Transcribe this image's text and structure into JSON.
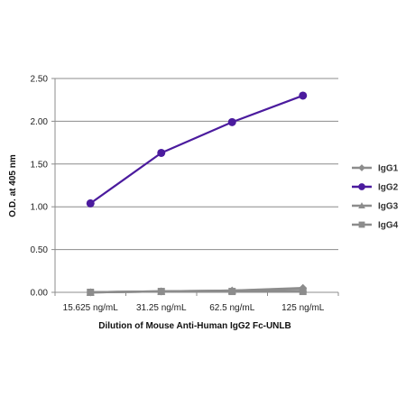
{
  "chart_data": {
    "type": "line",
    "title": "",
    "xlabel": "Dilution of Mouse Anti-Human IgG2 Fc-UNLB",
    "ylabel": "O.D. at 405 nm",
    "categories": [
      "15.625 ng/mL",
      "31.25 ng/mL",
      "62.5 ng/mL",
      "125 ng/mL"
    ],
    "ylim": [
      0,
      2.5
    ],
    "yticks": [
      "0.00",
      "0.50",
      "1.00",
      "1.50",
      "2.00",
      "2.50"
    ],
    "grid": true,
    "legend_position": "right",
    "series": [
      {
        "name": "IgG1",
        "values": [
          0.0,
          0.01,
          0.02,
          0.05
        ],
        "color": "#8c8c8c",
        "marker": "diamond"
      },
      {
        "name": "IgG2",
        "values": [
          1.04,
          1.63,
          1.99,
          2.3
        ],
        "color": "#4b1b9e",
        "marker": "circle"
      },
      {
        "name": "IgG3",
        "values": [
          0.0,
          0.01,
          0.02,
          0.04
        ],
        "color": "#8c8c8c",
        "marker": "triangle"
      },
      {
        "name": "IgG4",
        "values": [
          0.0,
          0.01,
          0.01,
          0.01
        ],
        "color": "#8c8c8c",
        "marker": "square"
      }
    ]
  }
}
